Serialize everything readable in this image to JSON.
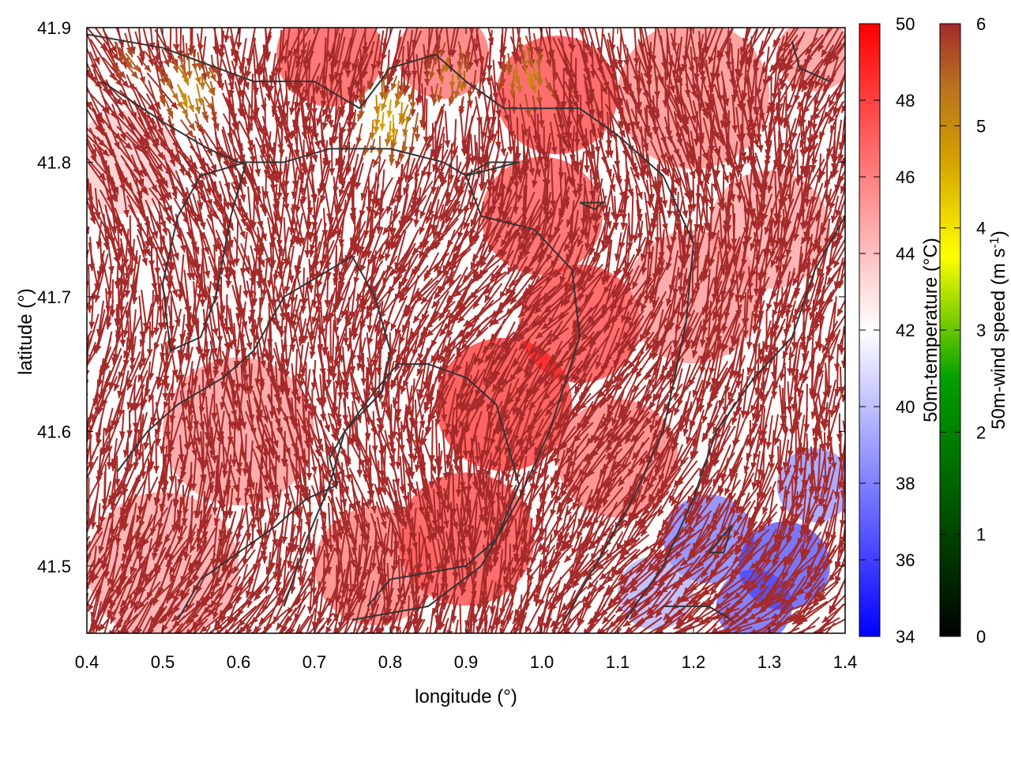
{
  "chart_data": {
    "type": "heatmap",
    "subtype": "wind-vector-field-over-temperature-map",
    "xlabel": "longitude (°)",
    "ylabel": "latitude (°)",
    "xlim": [
      0.4,
      1.4
    ],
    "ylim": [
      41.45,
      41.9
    ],
    "x_ticks": [
      0.4,
      0.5,
      0.6,
      0.7,
      0.8,
      0.9,
      1.0,
      1.1,
      1.2,
      1.3,
      1.4
    ],
    "x_tick_labels": [
      "0.4",
      "0.5",
      "0.6",
      "0.7",
      "0.8",
      "0.9",
      "1.0",
      "1.1",
      "1.2",
      "1.3",
      "1.4"
    ],
    "y_ticks": [
      41.5,
      41.6,
      41.7,
      41.8,
      41.9
    ],
    "y_tick_labels": [
      "41.5",
      "41.6",
      "41.7",
      "41.8",
      "41.9"
    ],
    "grid": false,
    "temperature_colorbar": {
      "label": "50m-temperature (°C)",
      "range": [
        34,
        50
      ],
      "ticks": [
        34,
        36,
        38,
        40,
        42,
        44,
        46,
        48,
        50
      ],
      "tick_labels": [
        "34",
        "36",
        "38",
        "40",
        "42",
        "44",
        "46",
        "48",
        "50"
      ],
      "colors": [
        "#0000ff",
        "#ffffff",
        "#ff0000"
      ]
    },
    "wind_colorbar": {
      "label_main": "50m-wind speed (m s",
      "label_sup": "-1",
      "label_end": ")",
      "range": [
        0,
        6
      ],
      "ticks": [
        0,
        1,
        2,
        3,
        4,
        5,
        6
      ],
      "tick_labels": [
        "0",
        "1",
        "2",
        "3",
        "4",
        "5",
        "6"
      ],
      "colors": [
        "#000000",
        "#005a00",
        "#00a000",
        "#ffff00",
        "#d4a000",
        "#b87020",
        "#a52a2a"
      ]
    },
    "temperature_regions": [
      {
        "lon": 0.72,
        "lat": 41.88,
        "temp": 48.5,
        "r": 0.07
      },
      {
        "lon": 0.87,
        "lat": 41.88,
        "temp": 47.5,
        "r": 0.06
      },
      {
        "lon": 1.02,
        "lat": 41.85,
        "temp": 49.0,
        "r": 0.08
      },
      {
        "lon": 1.2,
        "lat": 41.85,
        "temp": 46.5,
        "r": 0.1
      },
      {
        "lon": 1.36,
        "lat": 41.88,
        "temp": 46.0,
        "r": 0.05
      },
      {
        "lon": 1.0,
        "lat": 41.76,
        "temp": 48.5,
        "r": 0.08
      },
      {
        "lon": 1.05,
        "lat": 41.68,
        "temp": 49.0,
        "r": 0.08
      },
      {
        "lon": 0.95,
        "lat": 41.62,
        "temp": 49.5,
        "r": 0.09
      },
      {
        "lon": 0.9,
        "lat": 41.52,
        "temp": 49.0,
        "r": 0.09
      },
      {
        "lon": 1.1,
        "lat": 41.58,
        "temp": 47.0,
        "r": 0.08
      },
      {
        "lon": 1.2,
        "lat": 41.7,
        "temp": 46.0,
        "r": 0.09
      },
      {
        "lon": 1.3,
        "lat": 41.75,
        "temp": 45.5,
        "r": 0.08
      },
      {
        "lon": 0.78,
        "lat": 41.5,
        "temp": 47.0,
        "r": 0.08
      },
      {
        "lon": 0.6,
        "lat": 41.6,
        "temp": 46.0,
        "r": 0.1
      },
      {
        "lon": 0.5,
        "lat": 41.5,
        "temp": 45.5,
        "r": 0.1
      },
      {
        "lon": 0.45,
        "lat": 41.8,
        "temp": 44.0,
        "r": 0.07
      },
      {
        "lon": 0.56,
        "lat": 41.72,
        "temp": 42.5,
        "r": 0.05
      },
      {
        "lon": 1.22,
        "lat": 41.52,
        "temp": 37.0,
        "r": 0.06
      },
      {
        "lon": 1.32,
        "lat": 41.5,
        "temp": 35.5,
        "r": 0.06
      },
      {
        "lon": 1.36,
        "lat": 41.56,
        "temp": 38.0,
        "r": 0.05
      },
      {
        "lon": 1.28,
        "lat": 41.47,
        "temp": 36.0,
        "r": 0.05
      },
      {
        "lon": 1.15,
        "lat": 41.48,
        "temp": 39.0,
        "r": 0.05
      }
    ],
    "slow_wind_regions": [
      {
        "lon": 0.53,
        "lat": 41.86,
        "speed": 4.0,
        "r": 0.05
      },
      {
        "lon": 0.8,
        "lat": 41.84,
        "speed": 3.5,
        "r": 0.05
      },
      {
        "lon": 0.88,
        "lat": 41.87,
        "speed": 4.5,
        "r": 0.04
      },
      {
        "lon": 0.98,
        "lat": 41.87,
        "speed": 4.2,
        "r": 0.04
      },
      {
        "lon": 0.45,
        "lat": 41.88,
        "speed": 5.2,
        "r": 0.03
      }
    ],
    "contours": [
      [
        [
          0.4,
          41.895
        ],
        [
          0.5,
          41.885
        ],
        [
          0.62,
          41.86
        ],
        [
          0.7,
          41.86
        ],
        [
          0.76,
          41.84
        ],
        [
          0.8,
          41.87
        ],
        [
          0.86,
          41.88
        ],
        [
          0.9,
          41.86
        ],
        [
          0.95,
          41.84
        ],
        [
          1.0,
          41.84
        ],
        [
          1.05,
          41.84
        ],
        [
          1.1,
          41.82
        ],
        [
          1.16,
          41.79
        ],
        [
          1.2,
          41.74
        ],
        [
          1.19,
          41.68
        ],
        [
          1.16,
          41.6
        ],
        [
          1.12,
          41.55
        ],
        [
          1.08,
          41.51
        ],
        [
          1.03,
          41.46
        ]
      ],
      [
        [
          0.42,
          41.86
        ],
        [
          0.5,
          41.83
        ],
        [
          0.56,
          41.81
        ],
        [
          0.6,
          41.8
        ],
        [
          0.66,
          41.8
        ],
        [
          0.72,
          41.81
        ],
        [
          0.8,
          41.81
        ],
        [
          0.87,
          41.8
        ],
        [
          0.9,
          41.79
        ],
        [
          0.97,
          41.8
        ],
        [
          0.93,
          41.8
        ],
        [
          0.9,
          41.79
        ],
        [
          0.92,
          41.76
        ],
        [
          0.99,
          41.75
        ],
        [
          1.04,
          41.72
        ],
        [
          1.05,
          41.67
        ],
        [
          1.01,
          41.6
        ],
        [
          0.97,
          41.55
        ],
        [
          0.92,
          41.5
        ],
        [
          0.85,
          41.47
        ],
        [
          0.75,
          41.46
        ]
      ],
      [
        [
          0.61,
          41.8
        ],
        [
          0.55,
          41.79
        ],
        [
          0.52,
          41.76
        ],
        [
          0.5,
          41.71
        ],
        [
          0.51,
          41.66
        ],
        [
          0.55,
          41.67
        ],
        [
          0.57,
          41.7
        ],
        [
          0.59,
          41.76
        ],
        [
          0.61,
          41.8
        ]
      ],
      [
        [
          0.44,
          41.57
        ],
        [
          0.48,
          41.6
        ],
        [
          0.52,
          41.62
        ],
        [
          0.58,
          41.64
        ],
        [
          0.62,
          41.66
        ],
        [
          0.66,
          41.7
        ],
        [
          0.72,
          41.72
        ],
        [
          0.75,
          41.73
        ],
        [
          0.78,
          41.7
        ],
        [
          0.8,
          41.66
        ],
        [
          0.79,
          41.63
        ],
        [
          0.74,
          41.6
        ],
        [
          0.72,
          41.58
        ],
        [
          0.73,
          41.56
        ],
        [
          0.69,
          41.55
        ],
        [
          0.65,
          41.53
        ],
        [
          0.6,
          41.51
        ],
        [
          0.55,
          41.49
        ],
        [
          0.52,
          41.46
        ]
      ],
      [
        [
          0.66,
          41.47
        ],
        [
          0.69,
          41.52
        ],
        [
          0.72,
          41.56
        ],
        [
          0.74,
          41.6
        ],
        [
          0.78,
          41.63
        ],
        [
          0.81,
          41.65
        ],
        [
          0.85,
          41.65
        ],
        [
          0.9,
          41.64
        ],
        [
          0.94,
          41.62
        ],
        [
          0.97,
          41.56
        ],
        [
          0.94,
          41.52
        ],
        [
          0.9,
          41.5
        ],
        [
          0.8,
          41.49
        ],
        [
          0.77,
          41.47
        ]
      ],
      [
        [
          1.11,
          41.46
        ],
        [
          1.16,
          41.5
        ],
        [
          1.2,
          41.55
        ],
        [
          1.23,
          41.6
        ],
        [
          1.28,
          41.64
        ],
        [
          1.33,
          41.67
        ],
        [
          1.36,
          41.72
        ],
        [
          1.4,
          41.76
        ]
      ],
      [
        [
          1.22,
          41.51
        ],
        [
          1.25,
          41.53
        ],
        [
          1.24,
          41.51
        ],
        [
          1.22,
          41.51
        ]
      ],
      [
        [
          1.16,
          41.47
        ],
        [
          1.22,
          41.47
        ],
        [
          1.25,
          41.46
        ]
      ],
      [
        [
          1.33,
          41.89
        ],
        [
          1.34,
          41.87
        ],
        [
          1.38,
          41.86
        ]
      ],
      [
        [
          1.05,
          41.77
        ],
        [
          1.07,
          41.765
        ],
        [
          1.08,
          41.77
        ],
        [
          1.06,
          41.77
        ],
        [
          1.05,
          41.77
        ]
      ]
    ]
  }
}
